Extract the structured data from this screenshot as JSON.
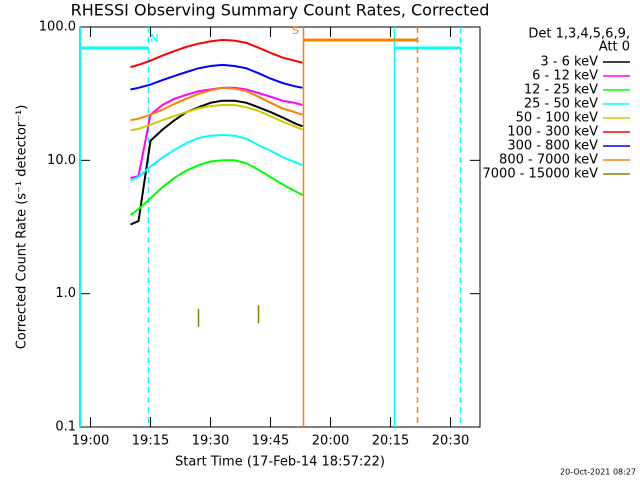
{
  "chart_data": {
    "type": "line",
    "title": "RHESSI Observing Summary Count Rates, Corrected",
    "x_label": "Start Time (17-Feb-14 18:57:22)",
    "y_label": "Corrected Count Rate (s⁻¹ detector⁻¹)",
    "legend_title": [
      "Det 1,3,4,5,6,9,",
      "Att 0"
    ],
    "footer": "20-Oct-2021 08:27",
    "log_y": true,
    "xlim": [
      -2.63,
      97.37
    ],
    "xticks": [
      {
        "value": 0,
        "label": "19:00"
      },
      {
        "value": 15,
        "label": "19:15"
      },
      {
        "value": 30,
        "label": "19:30"
      },
      {
        "value": 45,
        "label": "19:45"
      },
      {
        "value": 60,
        "label": "20:00"
      },
      {
        "value": 75,
        "label": "20:15"
      },
      {
        "value": 90,
        "label": "20:30"
      }
    ],
    "ylim": [
      0.1,
      100
    ],
    "yticks": [
      {
        "value": 100,
        "label": "100.0"
      },
      {
        "value": 10,
        "label": "10.0"
      },
      {
        "value": 1,
        "label": "1.0"
      },
      0.1
    ],
    "x": [
      10,
      12,
      15,
      18,
      21,
      24,
      27,
      30,
      33,
      36,
      39,
      42,
      45,
      48,
      51,
      53
    ],
    "series": [
      {
        "name": "3 - 6 keV",
        "color": "#000000",
        "values": [
          3.3,
          3.5,
          14,
          17,
          20,
          23,
          25,
          27,
          28,
          28,
          27,
          25,
          23,
          21,
          19,
          18
        ]
      },
      {
        "name": "6 - 12 keV",
        "color": "#ff00ff",
        "values": [
          7.4,
          7.6,
          22,
          26,
          29,
          31,
          33,
          34,
          35,
          35,
          34,
          32,
          30,
          28,
          27,
          26
        ]
      },
      {
        "name": "12 - 25 keV",
        "color": "#00ff00",
        "values": [
          3.9,
          4.3,
          5.2,
          6.3,
          7.4,
          8.4,
          9.2,
          9.8,
          10,
          10,
          9.5,
          8.5,
          7.5,
          6.6,
          5.9,
          5.5
        ]
      },
      {
        "name": "25 - 50 keV",
        "color": "#00ffff",
        "values": [
          7.1,
          7.5,
          9,
          10.5,
          12,
          13.5,
          14.7,
          15.3,
          15.5,
          15.3,
          14.5,
          13,
          11.8,
          10.6,
          9.7,
          9.2
        ]
      },
      {
        "name": "50 - 100 keV",
        "color": "#d2c800",
        "values": [
          16.8,
          17.2,
          18.5,
          20,
          21.5,
          23,
          24.5,
          25.5,
          26,
          26,
          25,
          23.5,
          21.5,
          19.5,
          18,
          17
        ]
      },
      {
        "name": "100 - 300 keV",
        "color": "#ff0000",
        "values": [
          50,
          52,
          56,
          61,
          66,
          71,
          75,
          78,
          80,
          79,
          76,
          70,
          64,
          59,
          56,
          54
        ]
      },
      {
        "name": "300 - 800 keV",
        "color": "#0000ff",
        "values": [
          34,
          35,
          37,
          40,
          43,
          46,
          49,
          51,
          52,
          51,
          49,
          45,
          41,
          38,
          36,
          35
        ]
      },
      {
        "name": "800 - 7000 keV",
        "color": "#ff8000",
        "values": [
          20,
          20.5,
          22,
          24,
          26.5,
          29,
          31.5,
          33.5,
          35,
          34.5,
          33,
          30,
          27,
          24.5,
          23,
          22
        ]
      },
      {
        "name": "7000 - 15000 keV",
        "color": "#808000",
        "values": [
          null,
          null,
          null,
          null,
          null,
          null,
          0.66,
          null,
          null,
          null,
          null,
          0.7,
          null,
          null,
          null,
          null
        ]
      }
    ],
    "annotations": [
      {
        "label": "N",
        "color": "#00ffff",
        "start": -2.5,
        "end": 14.5
      },
      {
        "color": "#00ffff",
        "start": 76,
        "end": 92.5
      },
      {
        "label": "S",
        "color": "#ff8000",
        "start": 53.25,
        "end": 81.75
      }
    ]
  }
}
